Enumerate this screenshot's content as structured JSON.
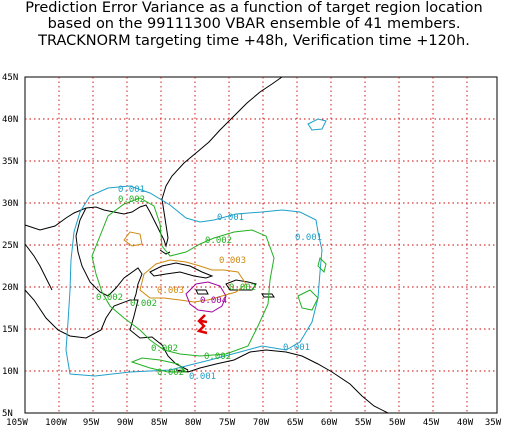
{
  "title": {
    "line1": "Prediction Error Variance as a function of target region location",
    "line2": "based on the 99111300 VBAR ensemble of 41 members.",
    "line3": "TRACKNORM targeting time +48h, Verification time +120h."
  },
  "axes": {
    "x_ticks": [
      "105W",
      "100W",
      "95W",
      "90W",
      "85W",
      "80W",
      "75W",
      "70W",
      "65W",
      "60W",
      "55W",
      "50W",
      "45W",
      "40W",
      "35W"
    ],
    "y_ticks": [
      "5N",
      "10N",
      "15N",
      "20N",
      "25N",
      "30N",
      "35N",
      "40N",
      "45N"
    ],
    "lon_range": [
      -105,
      -35
    ],
    "lat_range": [
      5,
      45
    ],
    "grid": "dotted red, every 5 degrees"
  },
  "colors": {
    "grid": "#d00000",
    "contour_0_001": "#1fa0c8",
    "contour_0_002": "#22b022",
    "contour_0_003": "#d08a10",
    "contour_0_004": "#a000a0",
    "contour_high": "#e00000",
    "coast": "#000000"
  },
  "contour_labels": [
    {
      "text": "0.001",
      "color": "#1fa0c8"
    },
    {
      "text": "0.001",
      "color": "#1fa0c8"
    },
    {
      "text": "0.001",
      "color": "#1fa0c8"
    },
    {
      "text": "0.001",
      "color": "#1fa0c8"
    },
    {
      "text": "0.001",
      "color": "#1fa0c8"
    },
    {
      "text": "0.002",
      "color": "#22b022"
    },
    {
      "text": "0.002",
      "color": "#22b022"
    },
    {
      "text": "0.002",
      "color": "#22b022"
    },
    {
      "text": "0.002",
      "color": "#22b022"
    },
    {
      "text": "0.002",
      "color": "#22b022"
    },
    {
      "text": "0.002",
      "color": "#22b022"
    },
    {
      "text": "0.002",
      "color": "#22b022"
    },
    {
      "text": "0.002",
      "color": "#22b022"
    },
    {
      "text": "0.003",
      "color": "#d08a10"
    },
    {
      "text": "0.003",
      "color": "#d08a10"
    },
    {
      "text": "0.004",
      "color": "#a000a0"
    }
  ]
}
